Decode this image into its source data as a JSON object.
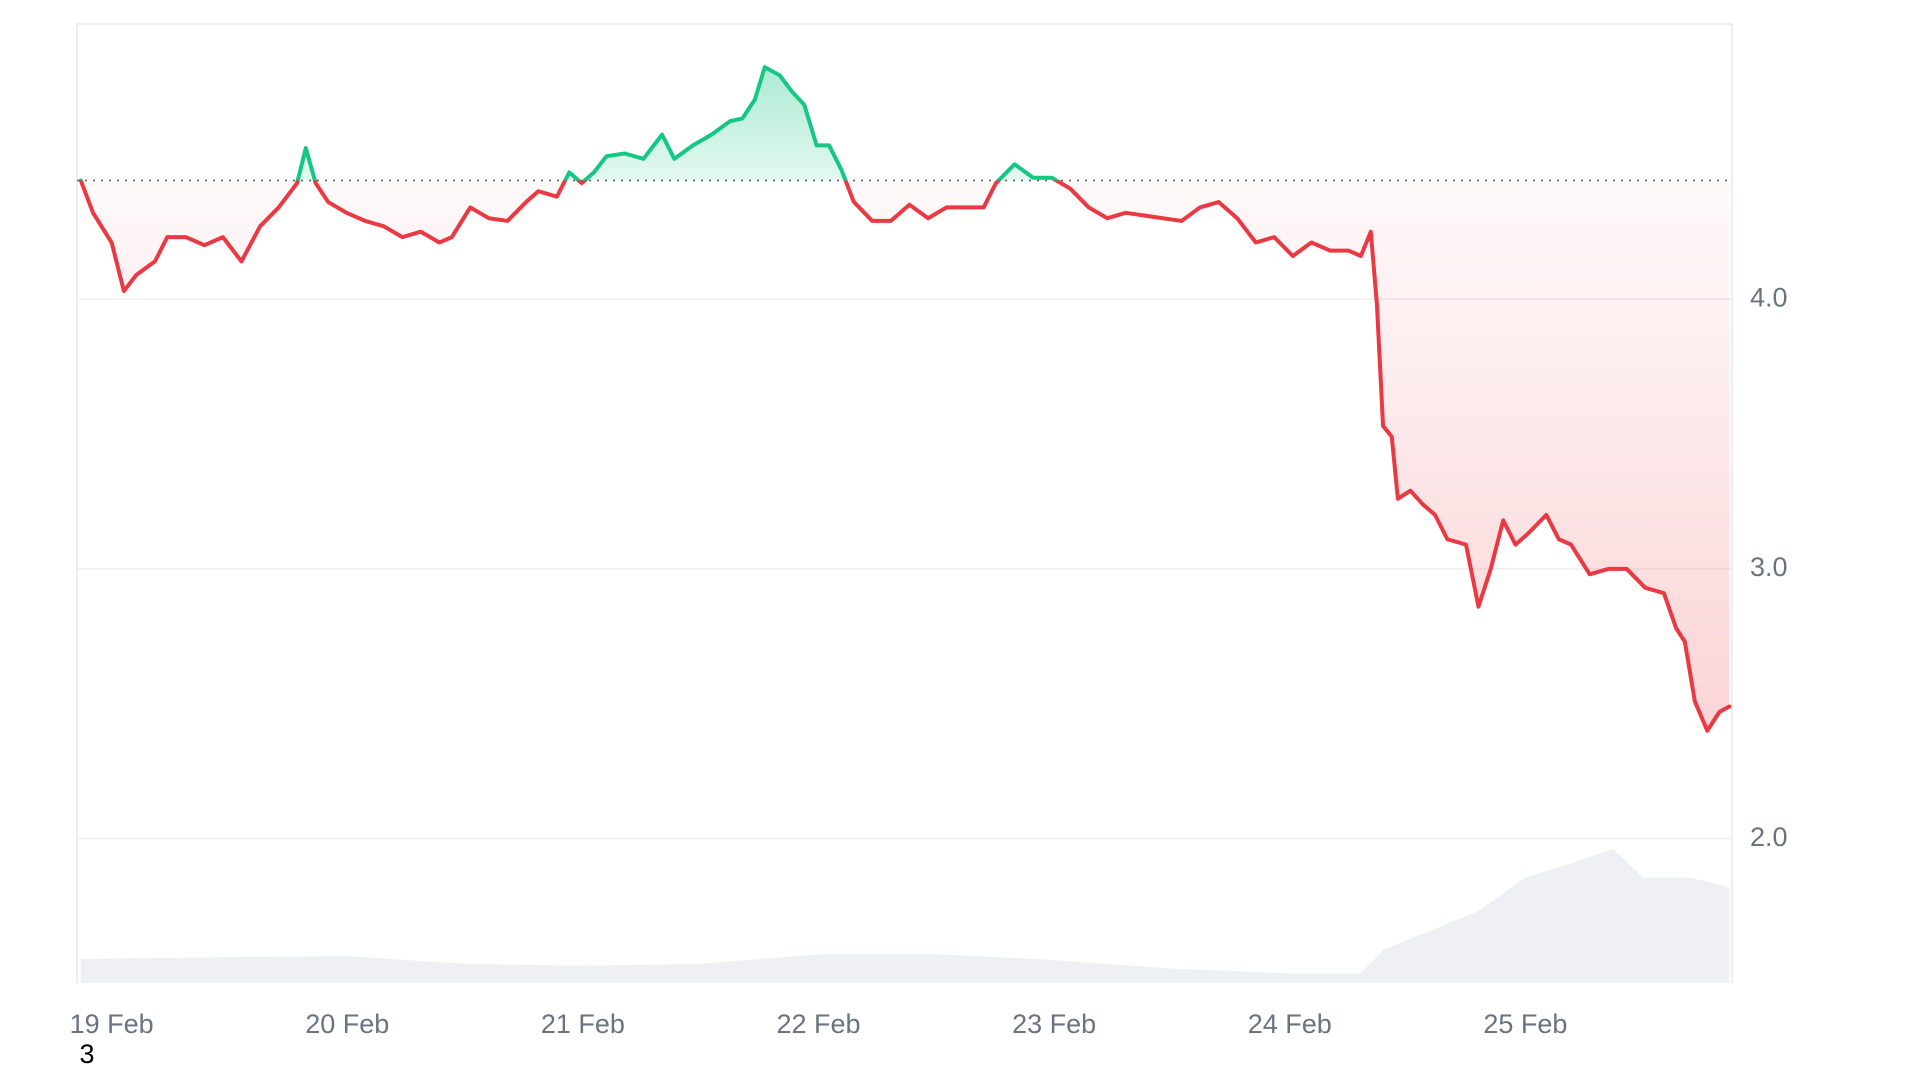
{
  "chart_data": {
    "type": "baseline-line",
    "annotation": "3",
    "baseline": 4.44,
    "colors": {
      "above": "#16c784",
      "below": "#ea3943"
    },
    "xlim": [
      18.853,
      25.877
    ],
    "xticks": [
      {
        "value": 19,
        "label": "19 Feb"
      },
      {
        "value": 20,
        "label": "20 Feb"
      },
      {
        "value": 21,
        "label": "21 Feb"
      },
      {
        "value": 22,
        "label": "22 Feb"
      },
      {
        "value": 23,
        "label": "23 Feb"
      },
      {
        "value": 24,
        "label": "24 Feb"
      },
      {
        "value": 25,
        "label": "25 Feb"
      }
    ],
    "ylim": [
      1.465,
      5.02
    ],
    "yticks": [
      {
        "value": 2,
        "label": "2.0"
      },
      {
        "value": 3,
        "label": "3.0"
      },
      {
        "value": 4,
        "label": "4.0"
      }
    ],
    "y2lim": [
      0,
      1
    ],
    "grid": true,
    "series": [
      {
        "x": [
          18.869,
          18.921,
          19.0,
          19.052,
          19.105,
          19.184,
          19.236,
          19.315,
          19.394,
          19.472,
          19.551,
          19.63,
          19.709,
          19.787,
          19.824,
          19.866,
          19.919,
          19.997,
          20.076,
          20.155,
          20.234,
          20.312,
          20.391,
          20.444,
          20.522,
          20.601,
          20.68,
          20.759,
          20.811,
          20.89,
          20.942,
          20.995,
          21.047,
          21.1,
          21.178,
          21.257,
          21.336,
          21.388,
          21.467,
          21.546,
          21.625,
          21.677,
          21.73,
          21.772,
          21.835,
          21.887,
          21.94,
          21.992,
          22.045,
          22.097,
          22.15,
          22.228,
          22.307,
          22.386,
          22.465,
          22.543,
          22.622,
          22.701,
          22.753,
          22.832,
          22.911,
          22.99,
          23.068,
          23.147,
          23.226,
          23.304,
          23.383,
          23.462,
          23.541,
          23.619,
          23.698,
          23.777,
          23.856,
          23.934,
          24.013,
          24.092,
          24.171,
          24.249,
          24.302,
          24.344,
          24.37,
          24.396,
          24.433,
          24.459,
          24.512,
          24.564,
          24.617,
          24.669,
          24.748,
          24.801,
          24.853,
          24.906,
          24.958,
          25.01,
          25.089,
          25.142,
          25.194,
          25.273,
          25.352,
          25.43,
          25.509,
          25.588,
          25.64,
          25.677,
          25.719,
          25.772,
          25.824,
          25.866
        ],
        "values": [
          4.44,
          4.32,
          4.21,
          4.03,
          4.09,
          4.14,
          4.23,
          4.23,
          4.2,
          4.23,
          4.14,
          4.27,
          4.34,
          4.43,
          4.56,
          4.43,
          4.36,
          4.32,
          4.29,
          4.27,
          4.23,
          4.25,
          4.21,
          4.23,
          4.34,
          4.3,
          4.29,
          4.36,
          4.4,
          4.38,
          4.47,
          4.43,
          4.47,
          4.53,
          4.54,
          4.52,
          4.61,
          4.52,
          4.57,
          4.61,
          4.66,
          4.67,
          4.74,
          4.86,
          4.83,
          4.77,
          4.72,
          4.57,
          4.57,
          4.48,
          4.36,
          4.29,
          4.29,
          4.35,
          4.3,
          4.34,
          4.34,
          4.34,
          4.43,
          4.5,
          4.45,
          4.45,
          4.41,
          4.34,
          4.3,
          4.32,
          4.31,
          4.3,
          4.29,
          4.34,
          4.36,
          4.3,
          4.21,
          4.23,
          4.16,
          4.21,
          4.18,
          4.18,
          4.16,
          4.25,
          3.98,
          3.53,
          3.49,
          3.26,
          3.29,
          3.24,
          3.2,
          3.11,
          3.09,
          2.86,
          3.0,
          3.18,
          3.09,
          3.13,
          3.2,
          3.11,
          3.09,
          2.98,
          3.0,
          3.0,
          2.93,
          2.91,
          2.78,
          2.73,
          2.51,
          2.4,
          2.47,
          2.49
        ]
      },
      {
        "axis": "y2",
        "color": "#eef0f4",
        "x": [
          18.869,
          19.5,
          20.0,
          20.5,
          21.0,
          21.5,
          22.0,
          22.5,
          23.0,
          23.5,
          24.0,
          24.3,
          24.4,
          24.6,
          24.8,
          25.0,
          25.2,
          25.37,
          25.5,
          25.7,
          25.866
        ],
        "values": [
          0.025,
          0.027,
          0.028,
          0.02,
          0.018,
          0.02,
          0.03,
          0.03,
          0.024,
          0.015,
          0.01,
          0.01,
          0.035,
          0.055,
          0.075,
          0.11,
          0.125,
          0.14,
          0.11,
          0.11,
          0.1
        ]
      }
    ]
  }
}
